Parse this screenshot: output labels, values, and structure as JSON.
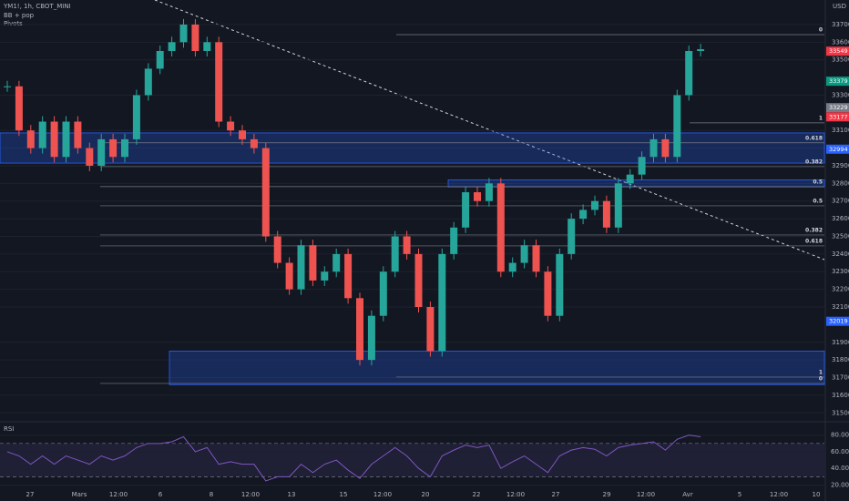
{
  "header": {
    "symbol": "YM1!, 1h, CBOT_MINI",
    "indicators": [
      "BB + pop",
      "Pivots"
    ],
    "currency": "USD"
  },
  "chart_data": [
    {
      "type": "candlestick",
      "color_up": "#26a69a",
      "color_down": "#ef5350",
      "values": [
        33350,
        33100,
        33000,
        33150,
        32950,
        33150,
        33000,
        32900,
        33050,
        32950,
        33050,
        33300,
        33450,
        33550,
        33600,
        33700,
        33550,
        33600,
        33150,
        33100,
        33050,
        33000,
        32500,
        32350,
        32200,
        32450,
        32250,
        32300,
        32400,
        32150,
        31800,
        32050,
        32300,
        32500,
        32400,
        32100,
        31850,
        32400,
        32550,
        32750,
        32700,
        32800,
        32300,
        32350,
        32450,
        32300,
        32050,
        32400,
        32600,
        32650,
        32700,
        32550,
        32800,
        32850,
        32950,
        33050,
        32950,
        33300,
        33550,
        33560
      ],
      "ylim": [
        31455,
        33839
      ],
      "yticks": [
        33700,
        33600,
        33500,
        33300,
        33100,
        33000,
        32900,
        32800,
        32700,
        32600,
        32500,
        32400,
        32300,
        32200,
        32100,
        31900,
        31800,
        31700,
        31600,
        31500
      ],
      "grid": true,
      "zones": [
        [
          33086,
          32915
        ],
        [
          32820,
          32780
        ],
        [
          31850,
          31660
        ]
      ],
      "levels": [
        {
          "value": 33643,
          "label": "0"
        },
        {
          "value": 33143,
          "label": "1"
        },
        {
          "value": 33030,
          "label": "0.618"
        },
        {
          "value": 32895,
          "label": "0.382"
        },
        {
          "value": 32782,
          "label": "0.5"
        },
        {
          "value": 32673,
          "label": "0.5"
        },
        {
          "value": 32508,
          "label": "0.382"
        },
        {
          "value": 32446,
          "label": "0.618"
        },
        {
          "value": 31703,
          "label": "1"
        },
        {
          "value": 31667,
          "label": "0"
        }
      ],
      "price_tags": [
        {
          "value": 33549,
          "color": "#f23645"
        },
        {
          "value": 33379,
          "color": "#089981"
        },
        {
          "value": 33229,
          "color": "#787b86"
        },
        {
          "value": 33177,
          "color": "#f23645"
        },
        {
          "value": 32994,
          "color": "#2962ff"
        },
        {
          "value": 32019,
          "color": "#2962ff"
        }
      ],
      "x_labels": [
        "27",
        "Mars",
        "12:00",
        "6",
        "8",
        "12:00",
        "13",
        "15",
        "12:00",
        "20",
        "22",
        "12:00",
        "27",
        "29",
        "12:00",
        "Avr",
        "5",
        "12:00",
        "10"
      ]
    },
    {
      "type": "line",
      "title": "RSI",
      "color": "#7e57c2",
      "values": [
        60,
        55,
        45,
        55,
        45,
        55,
        50,
        45,
        55,
        50,
        55,
        65,
        70,
        70,
        72,
        78,
        60,
        65,
        45,
        48,
        45,
        45,
        25,
        30,
        30,
        45,
        35,
        45,
        50,
        38,
        28,
        45,
        55,
        65,
        55,
        40,
        30,
        55,
        62,
        68,
        65,
        68,
        40,
        48,
        55,
        45,
        35,
        55,
        62,
        65,
        63,
        55,
        65,
        68,
        70,
        72,
        62,
        75,
        80,
        78
      ],
      "ylim": [
        3,
        95
      ],
      "yticks": [
        {
          "value": 80,
          "label": "80.00"
        },
        {
          "value": 60,
          "label": "60.00"
        },
        {
          "value": 40,
          "label": "40.00"
        },
        {
          "value": 20,
          "label": "20.00"
        }
      ],
      "bands": [
        70,
        30
      ]
    }
  ]
}
